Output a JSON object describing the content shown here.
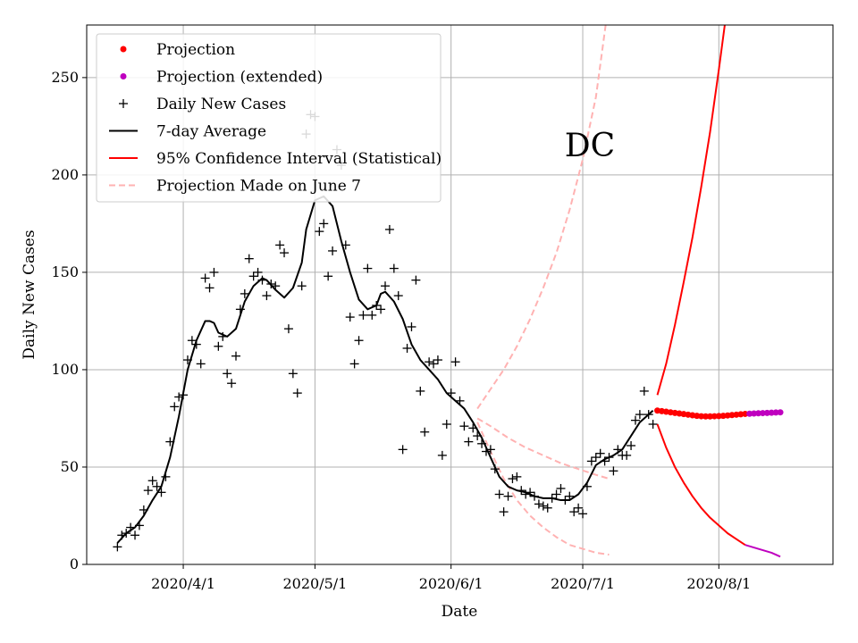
{
  "chart_data": {
    "type": "scatter",
    "xlabel": "Date",
    "ylabel": "Daily New Cases",
    "annotation": "DC",
    "xlim": [
      "2020-03-10",
      "2020-08-27"
    ],
    "ylim": [
      0,
      277
    ],
    "x_ticks": [
      "2020-04-01",
      "2020-05-01",
      "2020-06-01",
      "2020-07-01",
      "2020-08-01"
    ],
    "x_tick_labels": [
      "2020/4/1",
      "2020/5/1",
      "2020/6/1",
      "2020/7/1",
      "2020/8/1"
    ],
    "y_ticks": [
      0,
      50,
      100,
      150,
      200,
      250
    ],
    "y_tick_labels": [
      "0",
      "50",
      "100",
      "150",
      "200",
      "250"
    ],
    "grid": true,
    "legend_position": "top-left",
    "legend": [
      {
        "label": "Projection",
        "marker": "dot",
        "color": "#ff0000"
      },
      {
        "label": "Projection (extended)",
        "marker": "dot",
        "color": "#bf00bf"
      },
      {
        "label": "Daily New Cases",
        "marker": "plus",
        "color": "#000000"
      },
      {
        "label": "7-day Average",
        "marker": "line",
        "color": "#000000"
      },
      {
        "label": "95% Confidence Interval (Statistical)",
        "marker": "line",
        "color": "#ff0000"
      },
      {
        "label": "Projection Made on June 7",
        "marker": "dashed",
        "color": "#ffb2b2"
      }
    ],
    "series": [
      {
        "name": "Daily New Cases",
        "kind": "scatter",
        "color": "#000000",
        "points": [
          [
            "2020-03-17",
            9
          ],
          [
            "2020-03-18",
            15
          ],
          [
            "2020-03-19",
            16
          ],
          [
            "2020-03-20",
            19
          ],
          [
            "2020-03-21",
            15
          ],
          [
            "2020-03-22",
            20
          ],
          [
            "2020-03-23",
            28
          ],
          [
            "2020-03-24",
            38
          ],
          [
            "2020-03-25",
            43
          ],
          [
            "2020-03-26",
            40
          ],
          [
            "2020-03-27",
            37
          ],
          [
            "2020-03-28",
            45
          ],
          [
            "2020-03-29",
            63
          ],
          [
            "2020-03-30",
            81
          ],
          [
            "2020-03-31",
            86
          ],
          [
            "2020-04-01",
            87
          ],
          [
            "2020-04-02",
            105
          ],
          [
            "2020-04-03",
            115
          ],
          [
            "2020-04-04",
            113
          ],
          [
            "2020-04-05",
            103
          ],
          [
            "2020-04-06",
            147
          ],
          [
            "2020-04-07",
            142
          ],
          [
            "2020-04-08",
            150
          ],
          [
            "2020-04-09",
            112
          ],
          [
            "2020-04-10",
            117
          ],
          [
            "2020-04-11",
            98
          ],
          [
            "2020-04-12",
            93
          ],
          [
            "2020-04-13",
            107
          ],
          [
            "2020-04-14",
            131
          ],
          [
            "2020-04-15",
            139
          ],
          [
            "2020-04-16",
            157
          ],
          [
            "2020-04-17",
            148
          ],
          [
            "2020-04-18",
            150
          ],
          [
            "2020-04-19",
            146
          ],
          [
            "2020-04-20",
            138
          ],
          [
            "2020-04-21",
            144
          ],
          [
            "2020-04-22",
            143
          ],
          [
            "2020-04-23",
            164
          ],
          [
            "2020-04-24",
            160
          ],
          [
            "2020-04-25",
            121
          ],
          [
            "2020-04-26",
            98
          ],
          [
            "2020-04-27",
            88
          ],
          [
            "2020-04-28",
            143
          ],
          [
            "2020-04-29",
            221
          ],
          [
            "2020-04-30",
            231
          ],
          [
            "2020-05-01",
            230
          ],
          [
            "2020-05-02",
            171
          ],
          [
            "2020-05-03",
            175
          ],
          [
            "2020-05-04",
            148
          ],
          [
            "2020-05-05",
            161
          ],
          [
            "2020-05-06",
            213
          ],
          [
            "2020-05-07",
            205
          ],
          [
            "2020-05-08",
            164
          ],
          [
            "2020-05-09",
            127
          ],
          [
            "2020-05-10",
            103
          ],
          [
            "2020-05-11",
            115
          ],
          [
            "2020-05-12",
            128
          ],
          [
            "2020-05-13",
            152
          ],
          [
            "2020-05-14",
            128
          ],
          [
            "2020-05-15",
            133
          ],
          [
            "2020-05-16",
            131
          ],
          [
            "2020-05-17",
            143
          ],
          [
            "2020-05-18",
            172
          ],
          [
            "2020-05-19",
            152
          ],
          [
            "2020-05-20",
            138
          ],
          [
            "2020-05-21",
            59
          ],
          [
            "2020-05-22",
            111
          ],
          [
            "2020-05-23",
            122
          ],
          [
            "2020-05-24",
            146
          ],
          [
            "2020-05-25",
            89
          ],
          [
            "2020-05-26",
            68
          ],
          [
            "2020-05-27",
            104
          ],
          [
            "2020-05-28",
            103
          ],
          [
            "2020-05-29",
            105
          ],
          [
            "2020-05-30",
            56
          ],
          [
            "2020-05-31",
            72
          ],
          [
            "2020-06-01",
            88
          ],
          [
            "2020-06-02",
            104
          ],
          [
            "2020-06-03",
            84
          ],
          [
            "2020-06-04",
            71
          ],
          [
            "2020-06-05",
            63
          ],
          [
            "2020-06-06",
            70
          ],
          [
            "2020-06-07",
            66
          ],
          [
            "2020-06-08",
            62
          ],
          [
            "2020-06-09",
            58
          ],
          [
            "2020-06-10",
            59
          ],
          [
            "2020-06-11",
            49
          ],
          [
            "2020-06-12",
            36
          ],
          [
            "2020-06-13",
            27
          ],
          [
            "2020-06-14",
            35
          ],
          [
            "2020-06-15",
            44
          ],
          [
            "2020-06-16",
            45
          ],
          [
            "2020-06-17",
            38
          ],
          [
            "2020-06-18",
            36
          ],
          [
            "2020-06-19",
            37
          ],
          [
            "2020-06-20",
            35
          ],
          [
            "2020-06-21",
            31
          ],
          [
            "2020-06-22",
            30
          ],
          [
            "2020-06-23",
            29
          ],
          [
            "2020-06-24",
            34
          ],
          [
            "2020-06-25",
            36
          ],
          [
            "2020-06-26",
            39
          ],
          [
            "2020-06-27",
            33
          ],
          [
            "2020-06-28",
            35
          ],
          [
            "2020-06-29",
            27
          ],
          [
            "2020-06-30",
            29
          ],
          [
            "2020-07-01",
            26
          ],
          [
            "2020-07-02",
            40
          ],
          [
            "2020-07-03",
            53
          ],
          [
            "2020-07-04",
            55
          ],
          [
            "2020-07-05",
            57
          ],
          [
            "2020-07-06",
            53
          ],
          [
            "2020-07-07",
            55
          ],
          [
            "2020-07-08",
            48
          ],
          [
            "2020-07-09",
            59
          ],
          [
            "2020-07-10",
            56
          ],
          [
            "2020-07-11",
            56
          ],
          [
            "2020-07-12",
            61
          ],
          [
            "2020-07-13",
            74
          ],
          [
            "2020-07-14",
            77
          ],
          [
            "2020-07-15",
            89
          ],
          [
            "2020-07-16",
            77
          ],
          [
            "2020-07-17",
            72
          ]
        ]
      },
      {
        "name": "7-day Average",
        "kind": "line",
        "color": "#000000",
        "points": [
          [
            "2020-03-17",
            11
          ],
          [
            "2020-03-19",
            16
          ],
          [
            "2020-03-21",
            19
          ],
          [
            "2020-03-23",
            25
          ],
          [
            "2020-03-25",
            33
          ],
          [
            "2020-03-27",
            40
          ],
          [
            "2020-03-29",
            55
          ],
          [
            "2020-03-31",
            76
          ],
          [
            "2020-04-02",
            100
          ],
          [
            "2020-04-04",
            115
          ],
          [
            "2020-04-06",
            125
          ],
          [
            "2020-04-07",
            125
          ],
          [
            "2020-04-08",
            124
          ],
          [
            "2020-04-09",
            119
          ],
          [
            "2020-04-11",
            117
          ],
          [
            "2020-04-13",
            121
          ],
          [
            "2020-04-15",
            135
          ],
          [
            "2020-04-17",
            143
          ],
          [
            "2020-04-19",
            147
          ],
          [
            "2020-04-20",
            146
          ],
          [
            "2020-04-22",
            141
          ],
          [
            "2020-04-24",
            137
          ],
          [
            "2020-04-26",
            142
          ],
          [
            "2020-04-28",
            155
          ],
          [
            "2020-04-29",
            172
          ],
          [
            "2020-05-01",
            187
          ],
          [
            "2020-05-03",
            189
          ],
          [
            "2020-05-05",
            184
          ],
          [
            "2020-05-07",
            166
          ],
          [
            "2020-05-09",
            150
          ],
          [
            "2020-05-11",
            136
          ],
          [
            "2020-05-13",
            131
          ],
          [
            "2020-05-15",
            133
          ],
          [
            "2020-05-16",
            139
          ],
          [
            "2020-05-17",
            140
          ],
          [
            "2020-05-19",
            135
          ],
          [
            "2020-05-21",
            126
          ],
          [
            "2020-05-23",
            113
          ],
          [
            "2020-05-25",
            105
          ],
          [
            "2020-05-27",
            100
          ],
          [
            "2020-05-29",
            95
          ],
          [
            "2020-05-31",
            88
          ],
          [
            "2020-06-02",
            84
          ],
          [
            "2020-06-04",
            80
          ],
          [
            "2020-06-06",
            73
          ],
          [
            "2020-06-08",
            65
          ],
          [
            "2020-06-10",
            55
          ],
          [
            "2020-06-12",
            45
          ],
          [
            "2020-06-14",
            40
          ],
          [
            "2020-06-16",
            38
          ],
          [
            "2020-06-18",
            37
          ],
          [
            "2020-06-20",
            35
          ],
          [
            "2020-06-22",
            34
          ],
          [
            "2020-06-24",
            34
          ],
          [
            "2020-06-26",
            33
          ],
          [
            "2020-06-28",
            33
          ],
          [
            "2020-06-30",
            36
          ],
          [
            "2020-07-02",
            42
          ],
          [
            "2020-07-04",
            51
          ],
          [
            "2020-07-06",
            54
          ],
          [
            "2020-07-08",
            56
          ],
          [
            "2020-07-10",
            59
          ],
          [
            "2020-07-12",
            66
          ],
          [
            "2020-07-14",
            73
          ],
          [
            "2020-07-16",
            77
          ],
          [
            "2020-07-17",
            79
          ]
        ]
      },
      {
        "name": "Projection",
        "kind": "dots",
        "color": "#ff0000",
        "start": "2020-07-18",
        "values": [
          79,
          78.7,
          78.4,
          78.1,
          77.8,
          77.5,
          77.2,
          76.9,
          76.6,
          76.3,
          76.1,
          76,
          76,
          76.1,
          76.2,
          76.3,
          76.5,
          76.7,
          76.9,
          77.1,
          77.3
        ]
      },
      {
        "name": "Projection (extended)",
        "kind": "dots",
        "color": "#bf00bf",
        "start": "2020-08-08",
        "values": [
          77.4,
          77.5,
          77.6,
          77.7,
          77.8,
          77.9,
          78.0,
          78.1
        ]
      },
      {
        "name": "95% Confidence Interval (Statistical)",
        "kind": "line",
        "color": "#ff0000",
        "segments": [
          [
            [
              "2020-07-18",
              87
            ],
            [
              "2020-07-20",
              103
            ],
            [
              "2020-07-22",
              123
            ],
            [
              "2020-07-24",
              145
            ],
            [
              "2020-07-26",
              168
            ],
            [
              "2020-07-28",
              194
            ],
            [
              "2020-07-30",
              222
            ],
            [
              "2020-08-01",
              254
            ],
            [
              "2020-08-03",
              288
            ]
          ],
          [
            [
              "2020-07-18",
              72
            ],
            [
              "2020-07-20",
              60
            ],
            [
              "2020-07-22",
              50
            ],
            [
              "2020-07-24",
              42
            ],
            [
              "2020-07-26",
              35
            ],
            [
              "2020-07-28",
              29
            ],
            [
              "2020-07-30",
              24
            ],
            [
              "2020-08-01",
              20
            ],
            [
              "2020-08-03",
              16
            ],
            [
              "2020-08-05",
              13
            ],
            [
              "2020-08-07",
              10
            ]
          ]
        ]
      },
      {
        "name": "95% Confidence Interval (extended)",
        "kind": "line",
        "color": "#bf00bf",
        "segments": [
          [
            [
              "2020-08-07",
              10
            ],
            [
              "2020-08-10",
              8
            ],
            [
              "2020-08-13",
              6
            ],
            [
              "2020-08-15",
              4
            ]
          ]
        ]
      },
      {
        "name": "Projection Made on June 7",
        "kind": "dashed",
        "color": "#ffb2b2",
        "segments": [
          [
            [
              "2020-06-07",
              75
            ],
            [
              "2020-06-10",
              71
            ],
            [
              "2020-06-14",
              65
            ],
            [
              "2020-06-18",
              60
            ],
            [
              "2020-06-22",
              56
            ],
            [
              "2020-06-26",
              52
            ],
            [
              "2020-06-30",
              49
            ],
            [
              "2020-07-04",
              46
            ],
            [
              "2020-07-07",
              44
            ]
          ],
          [
            [
              "2020-06-07",
              80
            ],
            [
              "2020-06-10",
              90
            ],
            [
              "2020-06-13",
              100
            ],
            [
              "2020-06-16",
              112
            ],
            [
              "2020-06-19",
              126
            ],
            [
              "2020-06-22",
              142
            ],
            [
              "2020-06-25",
              160
            ],
            [
              "2020-06-28",
              182
            ],
            [
              "2020-07-01",
              208
            ],
            [
              "2020-07-04",
              240
            ],
            [
              "2020-07-07",
              290
            ]
          ],
          [
            [
              "2020-06-07",
              73
            ],
            [
              "2020-06-10",
              58
            ],
            [
              "2020-06-13",
              44
            ],
            [
              "2020-06-16",
              33
            ],
            [
              "2020-06-19",
              25
            ],
            [
              "2020-06-22",
              19
            ],
            [
              "2020-06-25",
              14
            ],
            [
              "2020-06-28",
              10
            ],
            [
              "2020-07-01",
              8
            ],
            [
              "2020-07-04",
              6
            ],
            [
              "2020-07-07",
              5
            ]
          ]
        ]
      }
    ]
  }
}
